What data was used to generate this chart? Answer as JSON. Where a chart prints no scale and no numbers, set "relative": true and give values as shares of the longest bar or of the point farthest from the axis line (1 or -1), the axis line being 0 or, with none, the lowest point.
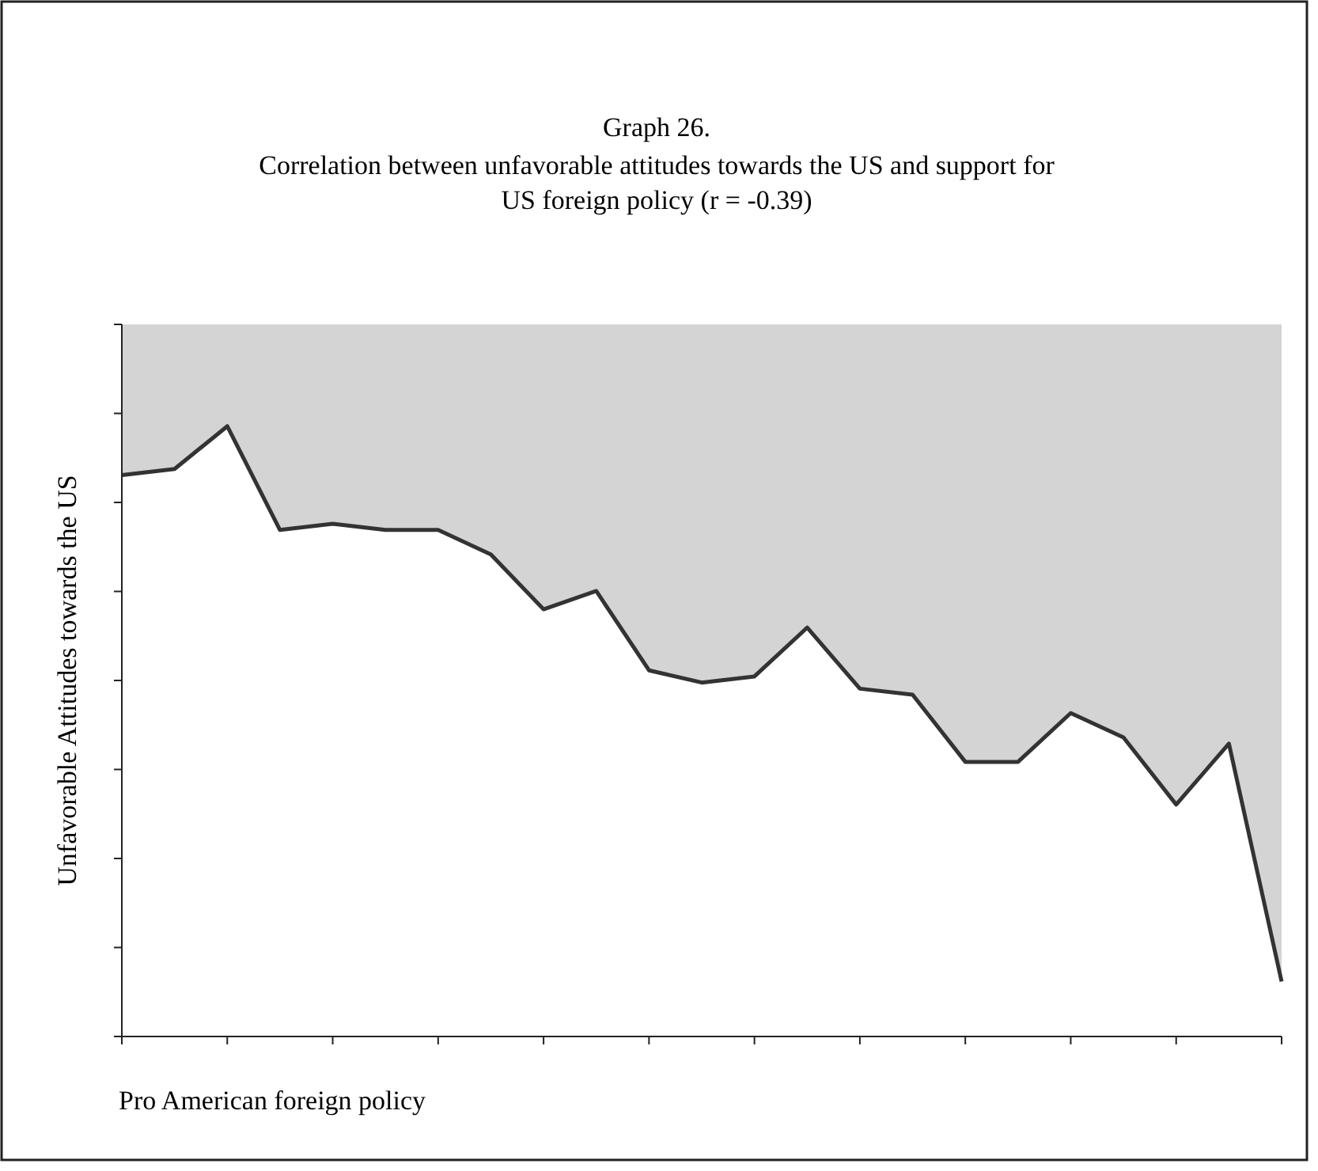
{
  "chart_data": {
    "type": "area",
    "title": "Graph 26.",
    "subtitle": "Correlation between unfavorable attitudes towards the US and support for US foreign policy (r = -0.39)",
    "xlabel": "Pro American foreign policy",
    "ylabel": "Unfavorable Attitudes towards the US",
    "relative": true,
    "categories": [
      null,
      null,
      null,
      null,
      null,
      null,
      null,
      null,
      null,
      null,
      null,
      null,
      null,
      null,
      null,
      null,
      null,
      null,
      null,
      null,
      null,
      null,
      null
    ],
    "series": [
      {
        "color": "#333333",
        "values": [
          0.92,
          0.93,
          1,
          0.83,
          0.84,
          0.83,
          0.83,
          0.79,
          0.7,
          0.73,
          0.6,
          0.58,
          0.59,
          0.67,
          0.57,
          0.56,
          0.45,
          0.45,
          0.53,
          0.49,
          0.38,
          0.48,
          0.09
        ]
      }
    ]
  }
}
